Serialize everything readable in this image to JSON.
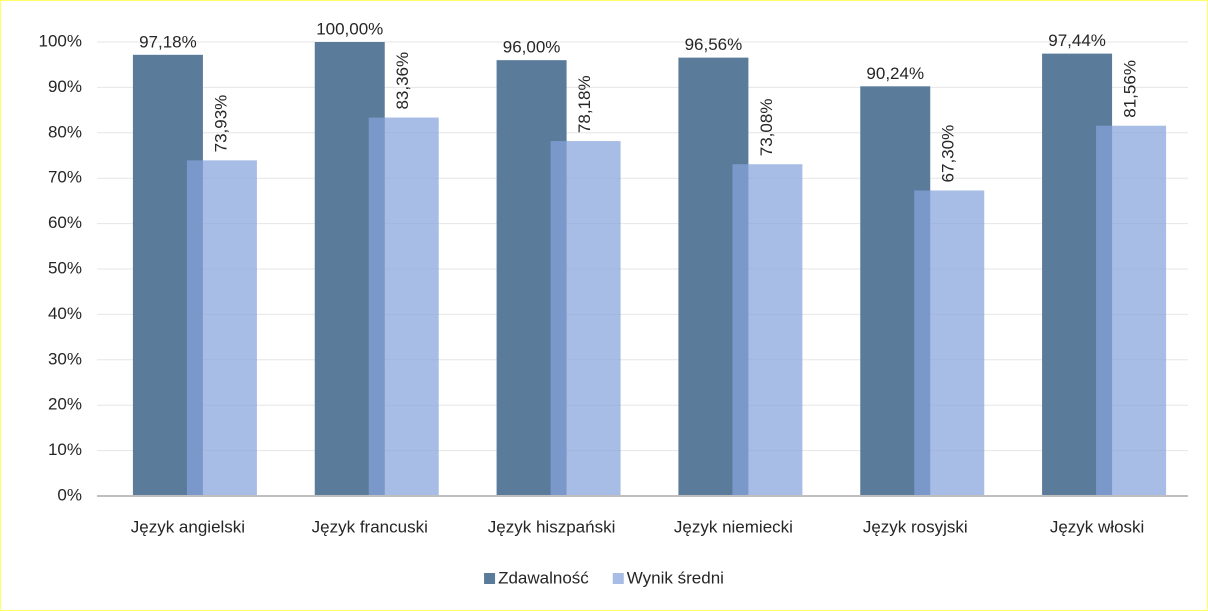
{
  "chart_data": {
    "type": "bar",
    "categories": [
      "Język angielski",
      "Język francuski",
      "Język hiszpański",
      "Język niemiecki",
      "Język rosyjski",
      "Język włoski"
    ],
    "series": [
      {
        "name": "Zdawalność",
        "color": "#5b7b9b",
        "values": [
          97.18,
          100,
          96,
          96.56,
          90.24,
          97.44
        ],
        "value_labels": [
          "97,18%",
          "100,00%",
          "96,00%",
          "96,56%",
          "90,24%",
          "97,44%"
        ]
      },
      {
        "name": "Wynik średni",
        "color": "#87a3db",
        "values": [
          73.93,
          83.36,
          78.18,
          73.08,
          67.3,
          81.56
        ],
        "value_labels": [
          "73,93%",
          "83,36%",
          "78,18%",
          "73,08%",
          "67,30%",
          "81,56%"
        ]
      }
    ],
    "ylim": [
      0,
      100
    ],
    "yticks": [
      {
        "value": 0,
        "label": "0%"
      },
      {
        "value": 10,
        "label": "10%"
      },
      {
        "value": 20,
        "label": "20%"
      },
      {
        "value": 30,
        "label": "30%"
      },
      {
        "value": 40,
        "label": "40%"
      },
      {
        "value": 50,
        "label": "50%"
      },
      {
        "value": 60,
        "label": "60%"
      },
      {
        "value": 70,
        "label": "70%"
      },
      {
        "value": 80,
        "label": "80%"
      },
      {
        "value": 90,
        "label": "90%"
      },
      {
        "value": 100,
        "label": "100%"
      }
    ],
    "grid": true,
    "legend": "bottom"
  }
}
